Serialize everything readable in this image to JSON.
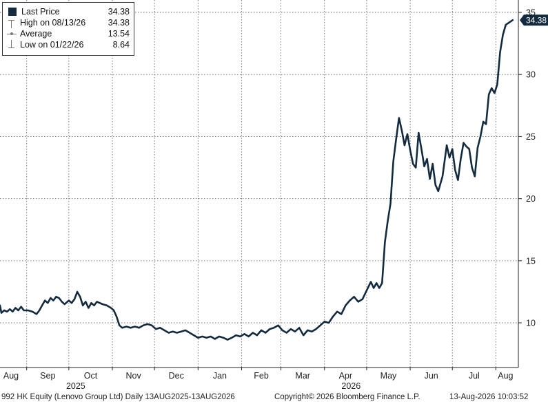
{
  "chart_data": {
    "type": "line",
    "title": "",
    "xlabel": "",
    "ylabel": "",
    "ylim": [
      6.4,
      36.0
    ],
    "yticks": [
      10,
      15,
      20,
      25,
      30,
      35
    ],
    "y_axis_position": "right",
    "grid": true,
    "legend_position": "top-left",
    "month_labels": [
      "Aug",
      "Sep",
      "Oct",
      "Nov",
      "Dec",
      "Jan",
      "Feb",
      "Mar",
      "Apr",
      "May",
      "Jun",
      "Jul",
      "Aug"
    ],
    "month_dates": [
      "2025-08-01",
      "2025-09-01",
      "2025-10-01",
      "2025-11-01",
      "2025-12-01",
      "2026-01-01",
      "2026-02-01",
      "2026-03-01",
      "2026-04-01",
      "2026-05-01",
      "2026-06-01",
      "2026-07-01",
      "2026-08-01"
    ],
    "year_labels": [
      {
        "label": "2025",
        "date": "2025-10-01"
      },
      {
        "label": "2026",
        "date": "2026-04-15"
      }
    ],
    "series": [
      {
        "name": "Last Price",
        "color": "#142a3e",
        "points": [
          [
            "2025-08-13",
            11.4
          ],
          [
            "2025-08-14",
            10.8
          ],
          [
            "2025-08-16",
            11.0
          ],
          [
            "2025-08-18",
            10.9
          ],
          [
            "2025-08-20",
            11.1
          ],
          [
            "2025-08-22",
            10.9
          ],
          [
            "2025-08-24",
            11.2
          ],
          [
            "2025-08-26",
            11.0
          ],
          [
            "2025-08-28",
            11.3
          ],
          [
            "2025-08-30",
            11.0
          ],
          [
            "2025-09-02",
            11.0
          ],
          [
            "2025-09-05",
            10.9
          ],
          [
            "2025-09-08",
            10.7
          ],
          [
            "2025-09-10",
            11.0
          ],
          [
            "2025-09-12",
            11.4
          ],
          [
            "2025-09-14",
            11.8
          ],
          [
            "2025-09-16",
            11.6
          ],
          [
            "2025-09-18",
            12.0
          ],
          [
            "2025-09-20",
            11.8
          ],
          [
            "2025-09-22",
            12.1
          ],
          [
            "2025-09-24",
            12.0
          ],
          [
            "2025-09-26",
            11.7
          ],
          [
            "2025-09-28",
            11.5
          ],
          [
            "2025-10-01",
            11.8
          ],
          [
            "2025-10-03",
            11.6
          ],
          [
            "2025-10-05",
            11.9
          ],
          [
            "2025-10-07",
            12.5
          ],
          [
            "2025-10-09",
            12.1
          ],
          [
            "2025-10-11",
            11.4
          ],
          [
            "2025-10-13",
            11.7
          ],
          [
            "2025-10-15",
            11.2
          ],
          [
            "2025-10-17",
            11.6
          ],
          [
            "2025-10-19",
            11.4
          ],
          [
            "2025-10-21",
            11.7
          ],
          [
            "2025-10-23",
            11.6
          ],
          [
            "2025-10-25",
            11.5
          ],
          [
            "2025-10-28",
            11.4
          ],
          [
            "2025-10-31",
            11.2
          ],
          [
            "2025-11-02",
            11.0
          ],
          [
            "2025-11-04",
            10.5
          ],
          [
            "2025-11-06",
            9.8
          ],
          [
            "2025-11-08",
            9.6
          ],
          [
            "2025-11-11",
            9.7
          ],
          [
            "2025-11-14",
            9.6
          ],
          [
            "2025-11-17",
            9.7
          ],
          [
            "2025-11-20",
            9.6
          ],
          [
            "2025-11-23",
            9.8
          ],
          [
            "2025-11-26",
            9.9
          ],
          [
            "2025-11-29",
            9.8
          ],
          [
            "2025-12-02",
            9.5
          ],
          [
            "2025-12-05",
            9.6
          ],
          [
            "2025-12-08",
            9.4
          ],
          [
            "2025-12-11",
            9.2
          ],
          [
            "2025-12-14",
            9.3
          ],
          [
            "2025-12-17",
            9.2
          ],
          [
            "2025-12-20",
            9.3
          ],
          [
            "2025-12-23",
            9.4
          ],
          [
            "2025-12-26",
            9.2
          ],
          [
            "2025-12-29",
            9.0
          ],
          [
            "2026-01-01",
            8.8
          ],
          [
            "2026-01-04",
            8.9
          ],
          [
            "2026-01-07",
            8.8
          ],
          [
            "2026-01-10",
            8.9
          ],
          [
            "2026-01-13",
            8.7
          ],
          [
            "2026-01-16",
            8.9
          ],
          [
            "2026-01-19",
            8.8
          ],
          [
            "2026-01-22",
            8.64
          ],
          [
            "2026-01-25",
            8.8
          ],
          [
            "2026-01-28",
            9.0
          ],
          [
            "2026-01-31",
            8.9
          ],
          [
            "2026-02-03",
            9.1
          ],
          [
            "2026-02-06",
            8.9
          ],
          [
            "2026-02-09",
            9.2
          ],
          [
            "2026-02-12",
            9.0
          ],
          [
            "2026-02-15",
            9.4
          ],
          [
            "2026-02-18",
            9.2
          ],
          [
            "2026-02-21",
            9.5
          ],
          [
            "2026-02-24",
            9.6
          ],
          [
            "2026-02-27",
            9.8
          ],
          [
            "2026-03-02",
            9.4
          ],
          [
            "2026-03-05",
            9.2
          ],
          [
            "2026-03-08",
            9.5
          ],
          [
            "2026-03-11",
            9.3
          ],
          [
            "2026-03-14",
            9.6
          ],
          [
            "2026-03-17",
            9.0
          ],
          [
            "2026-03-20",
            9.4
          ],
          [
            "2026-03-23",
            9.3
          ],
          [
            "2026-03-26",
            9.5
          ],
          [
            "2026-03-29",
            9.8
          ],
          [
            "2026-04-01",
            10.1
          ],
          [
            "2026-04-04",
            10.0
          ],
          [
            "2026-04-07",
            10.5
          ],
          [
            "2026-04-10",
            10.9
          ],
          [
            "2026-04-13",
            10.7
          ],
          [
            "2026-04-16",
            11.4
          ],
          [
            "2026-04-19",
            11.8
          ],
          [
            "2026-04-22",
            12.1
          ],
          [
            "2026-04-25",
            11.7
          ],
          [
            "2026-04-28",
            11.9
          ],
          [
            "2026-05-01",
            12.6
          ],
          [
            "2026-05-04",
            13.3
          ],
          [
            "2026-05-06",
            12.8
          ],
          [
            "2026-05-08",
            13.2
          ],
          [
            "2026-05-10",
            12.8
          ],
          [
            "2026-05-12",
            13.2
          ],
          [
            "2026-05-14",
            16.5
          ],
          [
            "2026-05-16",
            18.2
          ],
          [
            "2026-05-18",
            19.6
          ],
          [
            "2026-05-20",
            23.0
          ],
          [
            "2026-05-22",
            24.8
          ],
          [
            "2026-05-24",
            26.5
          ],
          [
            "2026-05-26",
            25.5
          ],
          [
            "2026-05-28",
            24.3
          ],
          [
            "2026-05-30",
            25.2
          ],
          [
            "2026-06-01",
            23.9
          ],
          [
            "2026-06-03",
            22.8
          ],
          [
            "2026-06-05",
            22.5
          ],
          [
            "2026-06-07",
            25.3
          ],
          [
            "2026-06-09",
            24.0
          ],
          [
            "2026-06-11",
            22.6
          ],
          [
            "2026-06-13",
            23.2
          ],
          [
            "2026-06-15",
            21.6
          ],
          [
            "2026-06-17",
            22.8
          ],
          [
            "2026-06-19",
            21.1
          ],
          [
            "2026-06-21",
            20.6
          ],
          [
            "2026-06-24",
            21.8
          ],
          [
            "2026-06-27",
            24.3
          ],
          [
            "2026-06-29",
            23.3
          ],
          [
            "2026-07-01",
            24.0
          ],
          [
            "2026-07-03",
            22.3
          ],
          [
            "2026-07-05",
            21.5
          ],
          [
            "2026-07-07",
            23.2
          ],
          [
            "2026-07-09",
            24.5
          ],
          [
            "2026-07-11",
            24.2
          ],
          [
            "2026-07-13",
            24.0
          ],
          [
            "2026-07-15",
            22.5
          ],
          [
            "2026-07-17",
            21.8
          ],
          [
            "2026-07-19",
            24.1
          ],
          [
            "2026-07-21",
            25.0
          ],
          [
            "2026-07-23",
            26.2
          ],
          [
            "2026-07-25",
            26.0
          ],
          [
            "2026-07-27",
            28.4
          ],
          [
            "2026-07-29",
            28.9
          ],
          [
            "2026-07-31",
            28.5
          ],
          [
            "2026-08-02",
            29.2
          ],
          [
            "2026-08-04",
            31.8
          ],
          [
            "2026-08-06",
            33.2
          ],
          [
            "2026-08-08",
            34.0
          ],
          [
            "2026-08-13",
            34.38
          ]
        ]
      }
    ],
    "last_price_badge": "34.38"
  },
  "legend": {
    "rows": [
      {
        "label": "Last Price",
        "value": "34.38"
      },
      {
        "label": "High on 08/13/26",
        "value": "34.38"
      },
      {
        "label": "Average",
        "value": "13.54"
      },
      {
        "label": "Low on 01/22/26",
        "value": "8.64"
      }
    ]
  },
  "footer": {
    "security": "992 HK Equity (Lenovo Group Ltd) Daily 13AUG2025-13AUG2026",
    "copyright": "Copyright© 2026 Bloomberg Finance L.P.",
    "timestamp": "13-Aug-2026 10:03:52"
  },
  "colors": {
    "line": "#142a3e",
    "badge": "#142a3e",
    "grid": "#555555"
  }
}
